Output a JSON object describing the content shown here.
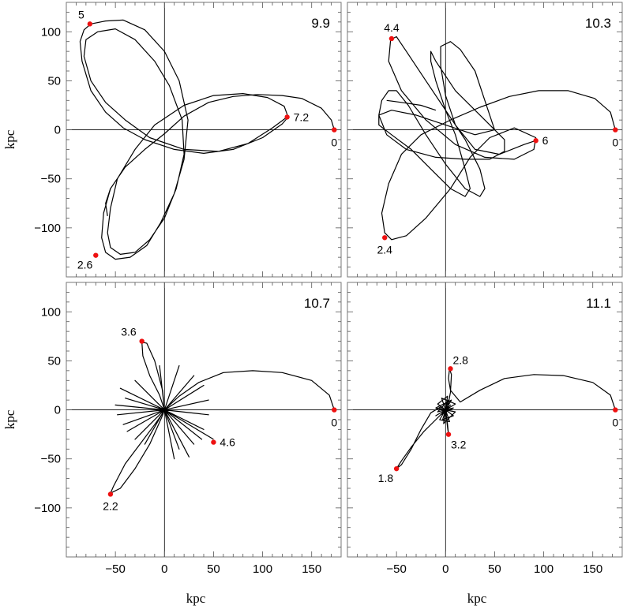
{
  "chart_data": {
    "type": "line",
    "xlabel": "kpc",
    "ylabel": "kpc",
    "xlim": [
      -100,
      180
    ],
    "ylim": [
      -150,
      130
    ],
    "x_ticks": [
      -50,
      0,
      50,
      100,
      150
    ],
    "x_tick_labels": [
      "−50",
      "0",
      "50",
      "100",
      "150"
    ],
    "y_ticks": [
      -100,
      -50,
      0,
      50,
      100
    ],
    "y_tick_labels": [
      "−100",
      "−50",
      "0",
      "50",
      "100"
    ],
    "point_color": "#ee1111",
    "line_color": "#000000",
    "panels": [
      {
        "label": "9.9",
        "orbit": [
          [
            173,
            0
          ],
          [
            170,
            10
          ],
          [
            160,
            22
          ],
          [
            140,
            32
          ],
          [
            120,
            35
          ],
          [
            95,
            36
          ],
          [
            70,
            34
          ],
          [
            45,
            28
          ],
          [
            20,
            14
          ],
          [
            0,
            -4
          ],
          [
            -20,
            -20
          ],
          [
            -40,
            -38
          ],
          [
            -55,
            -60
          ],
          [
            -62,
            -85
          ],
          [
            -64,
            -110
          ],
          [
            -60,
            -125
          ],
          [
            -50,
            -132
          ],
          [
            -35,
            -130
          ],
          [
            -18,
            -118
          ],
          [
            -4,
            -95
          ],
          [
            10,
            -65
          ],
          [
            20,
            -30
          ],
          [
            24,
            10
          ],
          [
            15,
            50
          ],
          [
            0,
            80
          ],
          [
            -20,
            102
          ],
          [
            -42,
            112
          ],
          [
            -60,
            111
          ],
          [
            -75,
            108
          ],
          [
            -82,
            102
          ],
          [
            -86,
            90
          ],
          [
            -84,
            70
          ],
          [
            -75,
            40
          ],
          [
            -60,
            18
          ],
          [
            -42,
            2
          ],
          [
            -20,
            -10
          ],
          [
            10,
            -20
          ],
          [
            40,
            -24
          ],
          [
            70,
            -20
          ],
          [
            100,
            -8
          ],
          [
            120,
            6
          ],
          [
            126,
            13
          ],
          [
            122,
            24
          ],
          [
            105,
            33
          ],
          [
            80,
            37
          ],
          [
            50,
            35
          ],
          [
            20,
            25
          ],
          [
            -10,
            5
          ],
          [
            -30,
            -20
          ],
          [
            -48,
            -50
          ],
          [
            -55,
            -80
          ],
          [
            -58,
            -105
          ],
          [
            -55,
            -120
          ],
          [
            -45,
            -127
          ],
          [
            -30,
            -125
          ],
          [
            -15,
            -112
          ],
          [
            0,
            -90
          ],
          [
            12,
            -60
          ],
          [
            20,
            -25
          ],
          [
            18,
            10
          ],
          [
            5,
            45
          ],
          [
            -10,
            70
          ],
          [
            -30,
            92
          ],
          [
            -50,
            103
          ],
          [
            -68,
            100
          ],
          [
            -80,
            92
          ],
          [
            -82,
            75
          ],
          [
            -75,
            50
          ],
          [
            -60,
            28
          ],
          [
            -40,
            10
          ],
          [
            -15,
            -8
          ],
          [
            20,
            -20
          ],
          [
            55,
            -22
          ],
          [
            85,
            -14
          ],
          [
            110,
            2
          ],
          [
            125,
            13
          ]
        ],
        "trail": [
          [
            -55,
            -60
          ],
          [
            -60,
            -75
          ],
          [
            -58,
            -88
          ]
        ],
        "points": [
          {
            "x": 0,
            "y": 0,
            "kx": 173,
            "ky": 0,
            "label": "0",
            "pos": "below"
          },
          {
            "x": 125,
            "y": 13,
            "label": "7.2",
            "pos": "right"
          },
          {
            "x": -76,
            "y": 108,
            "label": "5",
            "pos": "upleft"
          },
          {
            "x": -70,
            "y": -128,
            "label": "2.6",
            "pos": "downleft"
          }
        ]
      },
      {
        "label": "10.3",
        "orbit": [
          [
            173,
            0
          ],
          [
            168,
            18
          ],
          [
            152,
            32
          ],
          [
            125,
            40
          ],
          [
            95,
            40
          ],
          [
            65,
            34
          ],
          [
            35,
            23
          ],
          [
            5,
            10
          ],
          [
            -25,
            -5
          ],
          [
            -45,
            -25
          ],
          [
            -58,
            -55
          ],
          [
            -65,
            -85
          ],
          [
            -62,
            -105
          ],
          [
            -55,
            -112
          ],
          [
            -40,
            -108
          ],
          [
            -20,
            -90
          ],
          [
            5,
            -60
          ],
          [
            25,
            -28
          ],
          [
            45,
            -8
          ],
          [
            70,
            2
          ],
          [
            92,
            -8
          ],
          [
            90,
            -20
          ],
          [
            70,
            -30
          ],
          [
            40,
            -28
          ],
          [
            10,
            -15
          ],
          [
            -20,
            10
          ],
          [
            -45,
            40
          ],
          [
            -58,
            70
          ],
          [
            -56,
            92
          ],
          [
            -50,
            95
          ],
          [
            -40,
            80
          ],
          [
            -20,
            50
          ],
          [
            0,
            20
          ],
          [
            20,
            -10
          ],
          [
            35,
            -40
          ],
          [
            40,
            -60
          ],
          [
            35,
            -68
          ],
          [
            20,
            -60
          ],
          [
            0,
            -35
          ],
          [
            -20,
            -5
          ],
          [
            -38,
            25
          ],
          [
            -50,
            40
          ],
          [
            -58,
            40
          ],
          [
            -65,
            30
          ],
          [
            -68,
            15
          ],
          [
            -60,
            -5
          ],
          [
            -40,
            -20
          ],
          [
            -10,
            -28
          ],
          [
            20,
            -30
          ],
          [
            45,
            -30
          ],
          [
            60,
            -22
          ],
          [
            60,
            -10
          ],
          [
            40,
            10
          ],
          [
            10,
            40
          ],
          [
            -10,
            70
          ],
          [
            -15,
            80
          ],
          [
            -15,
            70
          ],
          [
            -10,
            50
          ],
          [
            0,
            20
          ],
          [
            10,
            -5
          ],
          [
            20,
            -40
          ],
          [
            25,
            -60
          ],
          [
            20,
            -68
          ],
          [
            5,
            -60
          ],
          [
            -15,
            -40
          ],
          [
            -35,
            -20
          ],
          [
            -55,
            -5
          ],
          [
            -68,
            5
          ],
          [
            -68,
            15
          ],
          [
            -55,
            20
          ],
          [
            -30,
            15
          ],
          [
            0,
            5
          ],
          [
            30,
            -5
          ],
          [
            50,
            0
          ],
          [
            40,
            30
          ],
          [
            30,
            60
          ],
          [
            15,
            82
          ],
          [
            5,
            90
          ],
          [
            -5,
            85
          ],
          [
            -5,
            65
          ],
          [
            0,
            35
          ],
          [
            10,
            5
          ],
          [
            30,
            -20
          ],
          [
            55,
            -25
          ],
          [
            80,
            -15
          ],
          [
            92,
            -11
          ]
        ],
        "trail": [
          [
            -60,
            30
          ],
          [
            -45,
            28
          ],
          [
            -25,
            25
          ],
          [
            -10,
            20
          ]
        ],
        "points": [
          {
            "x": 0,
            "y": 0,
            "kx": 173,
            "ky": 0,
            "label": "0",
            "pos": "below"
          },
          {
            "x": 92,
            "y": -11,
            "label": "6",
            "pos": "right"
          },
          {
            "x": -55,
            "y": 93,
            "label": "4.4",
            "pos": "up"
          },
          {
            "x": -62,
            "y": -110,
            "label": "2.4",
            "pos": "down"
          }
        ]
      },
      {
        "label": "10.7",
        "orbit": [
          [
            173,
            0
          ],
          [
            168,
            15
          ],
          [
            150,
            30
          ],
          [
            120,
            38
          ],
          [
            90,
            40
          ],
          [
            60,
            38
          ],
          [
            35,
            28
          ],
          [
            15,
            14
          ],
          [
            2,
            2
          ],
          [
            -10,
            -15
          ],
          [
            -25,
            -35
          ],
          [
            -40,
            -55
          ],
          [
            -52,
            -78
          ],
          [
            -55,
            -85
          ],
          [
            -45,
            -80
          ],
          [
            -30,
            -60
          ],
          [
            -15,
            -35
          ],
          [
            -3,
            -8
          ],
          [
            0,
            0
          ],
          [
            -5,
            15
          ],
          [
            -15,
            35
          ],
          [
            -22,
            55
          ],
          [
            -23,
            69
          ],
          [
            -18,
            68
          ],
          [
            -10,
            50
          ],
          [
            -2,
            20
          ],
          [
            0,
            0
          ],
          [
            -40,
            12
          ],
          [
            0,
            0
          ],
          [
            -48,
            -5
          ],
          [
            0,
            0
          ],
          [
            -38,
            -22
          ],
          [
            0,
            0
          ],
          [
            -20,
            -35
          ],
          [
            0,
            0
          ],
          [
            15,
            -40
          ],
          [
            0,
            0
          ],
          [
            30,
            -35
          ],
          [
            0,
            0
          ],
          [
            40,
            -20
          ],
          [
            0,
            0
          ],
          [
            45,
            -5
          ],
          [
            0,
            0
          ],
          [
            45,
            10
          ],
          [
            0,
            0
          ],
          [
            40,
            25
          ],
          [
            0,
            0
          ],
          [
            30,
            35
          ],
          [
            0,
            0
          ],
          [
            15,
            45
          ],
          [
            0,
            0
          ],
          [
            -5,
            45
          ],
          [
            0,
            0
          ],
          [
            -30,
            30
          ],
          [
            0,
            0
          ],
          [
            -45,
            22
          ],
          [
            0,
            0
          ],
          [
            -50,
            5
          ],
          [
            0,
            0
          ],
          [
            -42,
            -15
          ],
          [
            0,
            0
          ],
          [
            -30,
            -30
          ],
          [
            0,
            0
          ],
          [
            10,
            -50
          ],
          [
            0,
            0
          ],
          [
            25,
            -48
          ],
          [
            0,
            0
          ],
          [
            38,
            -30
          ],
          [
            0,
            0
          ],
          [
            50,
            -30
          ]
        ],
        "trail": [],
        "points": [
          {
            "x": 0,
            "y": 0,
            "kx": 173,
            "ky": 0,
            "label": "0",
            "pos": "below"
          },
          {
            "x": 50,
            "y": -33,
            "label": "4.6",
            "pos": "right"
          },
          {
            "x": -23,
            "y": 70,
            "label": "3.6",
            "pos": "upleft"
          },
          {
            "x": -55,
            "y": -86,
            "label": "2.2",
            "pos": "down"
          }
        ]
      },
      {
        "label": "11.1",
        "orbit": [
          [
            173,
            0
          ],
          [
            168,
            15
          ],
          [
            150,
            28
          ],
          [
            120,
            35
          ],
          [
            90,
            36
          ],
          [
            60,
            32
          ],
          [
            35,
            20
          ],
          [
            15,
            8
          ],
          [
            5,
            20
          ],
          [
            3,
            32
          ],
          [
            4,
            42
          ],
          [
            6,
            36
          ],
          [
            5,
            18
          ],
          [
            2,
            2
          ],
          [
            -10,
            -10
          ],
          [
            -22,
            -22
          ],
          [
            -35,
            -38
          ],
          [
            -45,
            -52
          ],
          [
            -50,
            -60
          ],
          [
            -45,
            -56
          ],
          [
            -35,
            -40
          ],
          [
            -25,
            -20
          ],
          [
            -15,
            -3
          ],
          [
            -5,
            3
          ],
          [
            0,
            0
          ],
          [
            5,
            5
          ],
          [
            -5,
            -5
          ],
          [
            8,
            2
          ],
          [
            -8,
            -2
          ],
          [
            3,
            10
          ],
          [
            -3,
            -10
          ],
          [
            8,
            -6
          ],
          [
            -8,
            6
          ],
          [
            2,
            14
          ],
          [
            -2,
            -14
          ],
          [
            10,
            -2
          ],
          [
            -10,
            2
          ],
          [
            6,
            10
          ],
          [
            -6,
            -10
          ],
          [
            4,
            -12
          ],
          [
            -4,
            12
          ],
          [
            10,
            6
          ],
          [
            -10,
            -6
          ],
          [
            0,
            0
          ],
          [
            2,
            -15
          ],
          [
            3,
            -25
          ],
          [
            2,
            -18
          ],
          [
            0,
            0
          ]
        ],
        "trail": [],
        "points": [
          {
            "x": 0,
            "y": 0,
            "kx": 173,
            "ky": 0,
            "label": "0",
            "pos": "below"
          },
          {
            "x": 5,
            "y": 42,
            "label": "2.8",
            "pos": "upright"
          },
          {
            "x": 3,
            "y": -25,
            "label": "3.2",
            "pos": "downright"
          },
          {
            "x": -50,
            "y": -60,
            "label": "1.8",
            "pos": "downleft"
          }
        ]
      }
    ]
  }
}
